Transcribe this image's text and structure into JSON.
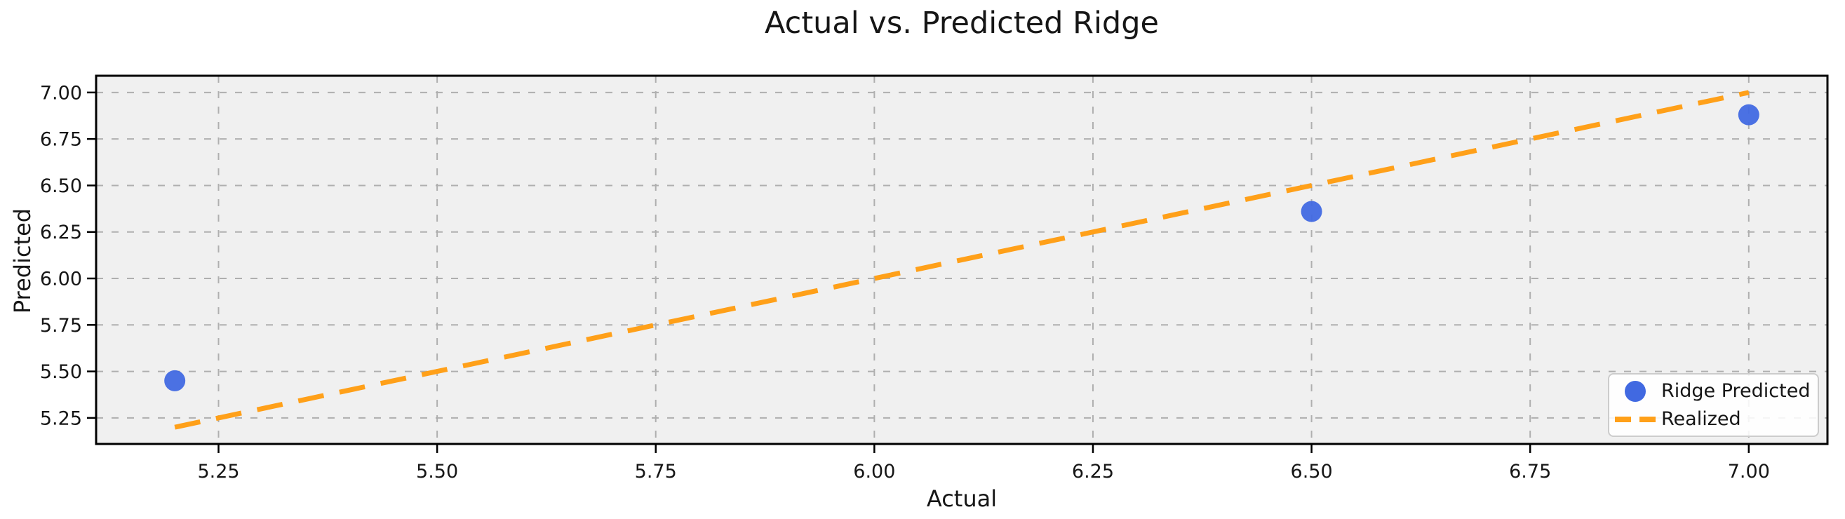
{
  "chart_data": {
    "type": "scatter",
    "title": "Actual vs. Predicted Ridge",
    "xlabel": "Actual",
    "ylabel": "Predicted",
    "xlim": [
      5.11,
      7.09
    ],
    "ylim": [
      5.11,
      7.09
    ],
    "x_ticks": [
      5.25,
      5.5,
      5.75,
      6.0,
      6.25,
      6.5,
      6.75,
      7.0
    ],
    "x_tick_labels": [
      "5.25",
      "5.50",
      "5.75",
      "6.00",
      "6.25",
      "6.50",
      "6.75",
      "7.00"
    ],
    "y_ticks": [
      5.25,
      5.5,
      5.75,
      6.0,
      6.25,
      6.5,
      6.75,
      7.0
    ],
    "y_tick_labels": [
      "5.25",
      "5.50",
      "5.75",
      "6.00",
      "6.25",
      "6.50",
      "6.75",
      "7.00"
    ],
    "grid": true,
    "grid_style": "dashed",
    "legend_position": "lower right",
    "series": [
      {
        "name": "Ridge Predicted",
        "kind": "scatter",
        "color": "#4169E1",
        "x": [
          5.2,
          6.5,
          7.0
        ],
        "y": [
          5.45,
          6.36,
          6.88
        ]
      },
      {
        "name": "Realized",
        "kind": "line",
        "style": "dashed",
        "color": "#FFA019",
        "x": [
          5.2,
          7.0
        ],
        "y": [
          5.2,
          7.0
        ]
      }
    ]
  },
  "colors": {
    "figure_bg": "#ffffff",
    "axes_bg": "#f0f0f0",
    "grid": "#afafaf",
    "spine": "#000000",
    "text": "#161616",
    "legend_border": "#cccccc"
  }
}
